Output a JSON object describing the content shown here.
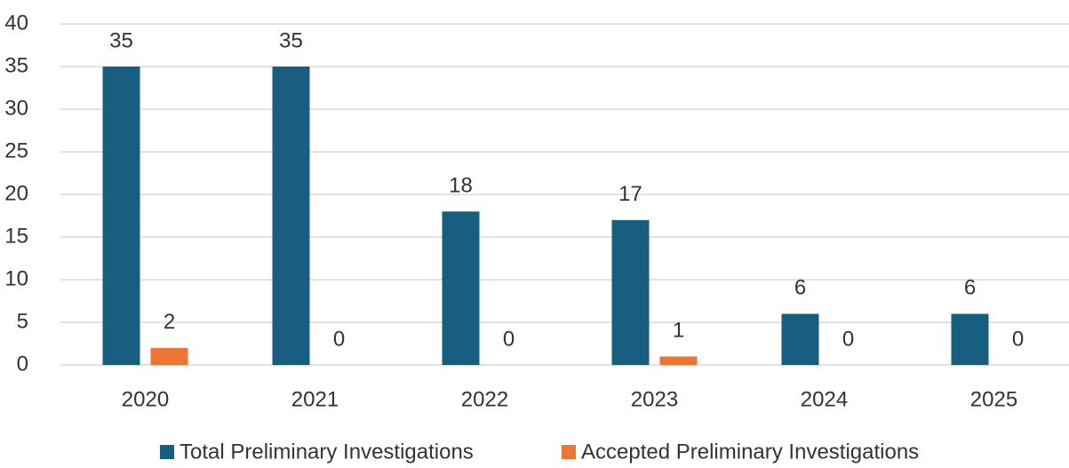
{
  "chart_data": {
    "type": "bar",
    "categories": [
      "2020",
      "2021",
      "2022",
      "2023",
      "2024",
      "2025"
    ],
    "series": [
      {
        "name": "Total Preliminary Investigations",
        "color": "#175e80",
        "values": [
          35,
          35,
          18,
          17,
          6,
          6
        ]
      },
      {
        "name": "Accepted Preliminary Investigations",
        "color": "#ec7535",
        "values": [
          2,
          0,
          0,
          1,
          0,
          0
        ]
      }
    ],
    "ylim": [
      0,
      40
    ],
    "yticks": [
      0,
      5,
      10,
      15,
      20,
      25,
      30,
      35,
      40
    ],
    "grid": true,
    "legend": "bottom"
  }
}
